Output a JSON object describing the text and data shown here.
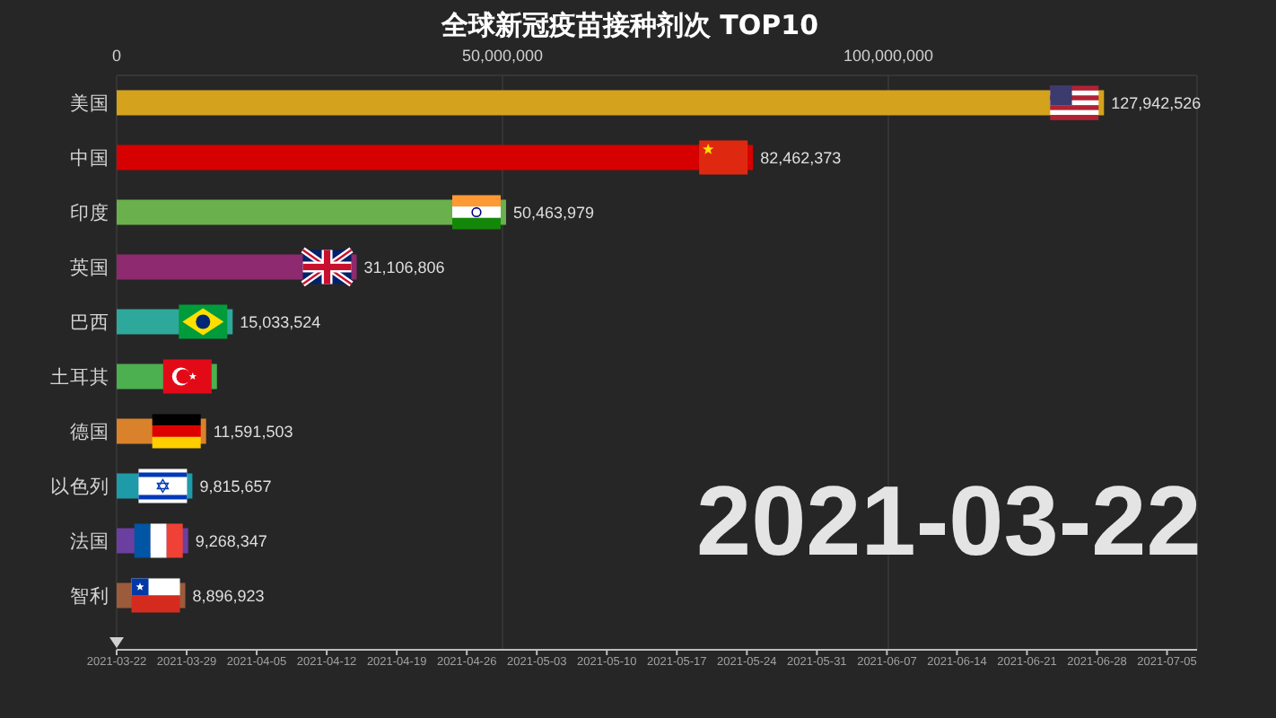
{
  "chart_data": {
    "type": "bar",
    "orientation": "horizontal",
    "title": "全球新冠疫苗接种剂次 TOP10",
    "categories": [
      "美国",
      "中国",
      "印度",
      "英国",
      "巴西",
      "土耳其",
      "德国",
      "以色列",
      "法国",
      "智利"
    ],
    "values": [
      127942526,
      82462373,
      50463979,
      31106806,
      15033524,
      13000000,
      11591503,
      9815657,
      9268347,
      8896923
    ],
    "colors": [
      "#d4a21c",
      "#d60000",
      "#6ab04c",
      "#8e2a6f",
      "#2ea89a",
      "#4caf50",
      "#d9822b",
      "#1f9aa8",
      "#6b3fa0",
      "#9c5b3b"
    ],
    "value_labels": [
      "127,942,526",
      "82,462,373",
      "50,463,979",
      "31,106,806",
      "15,033,524",
      null,
      "11,591,503",
      "9,815,657",
      "9,268,347",
      "8,896,923"
    ],
    "xlim": [
      0,
      140000000
    ],
    "xticks": [
      0,
      {
        "value": 50000000,
        "label": "50,000,000"
      },
      {
        "value": 100000000,
        "label": "100,000,000"
      }
    ],
    "x2lim": [
      "2021-03-22",
      "2021-07-08"
    ],
    "x2ticks": [
      "2021-03-22",
      "2021-03-29",
      "2021-04-05",
      "2021-04-12",
      "2021-04-19",
      "2021-04-26",
      "2021-05-03",
      "2021-05-10",
      "2021-05-17",
      "2021-05-24",
      "2021-05-31",
      "2021-06-07",
      "2021-06-14",
      "2021-06-21",
      "2021-06-28",
      "2021-07-05"
    ],
    "grid": "x",
    "annotations": [
      "2021-03-22"
    ]
  }
}
